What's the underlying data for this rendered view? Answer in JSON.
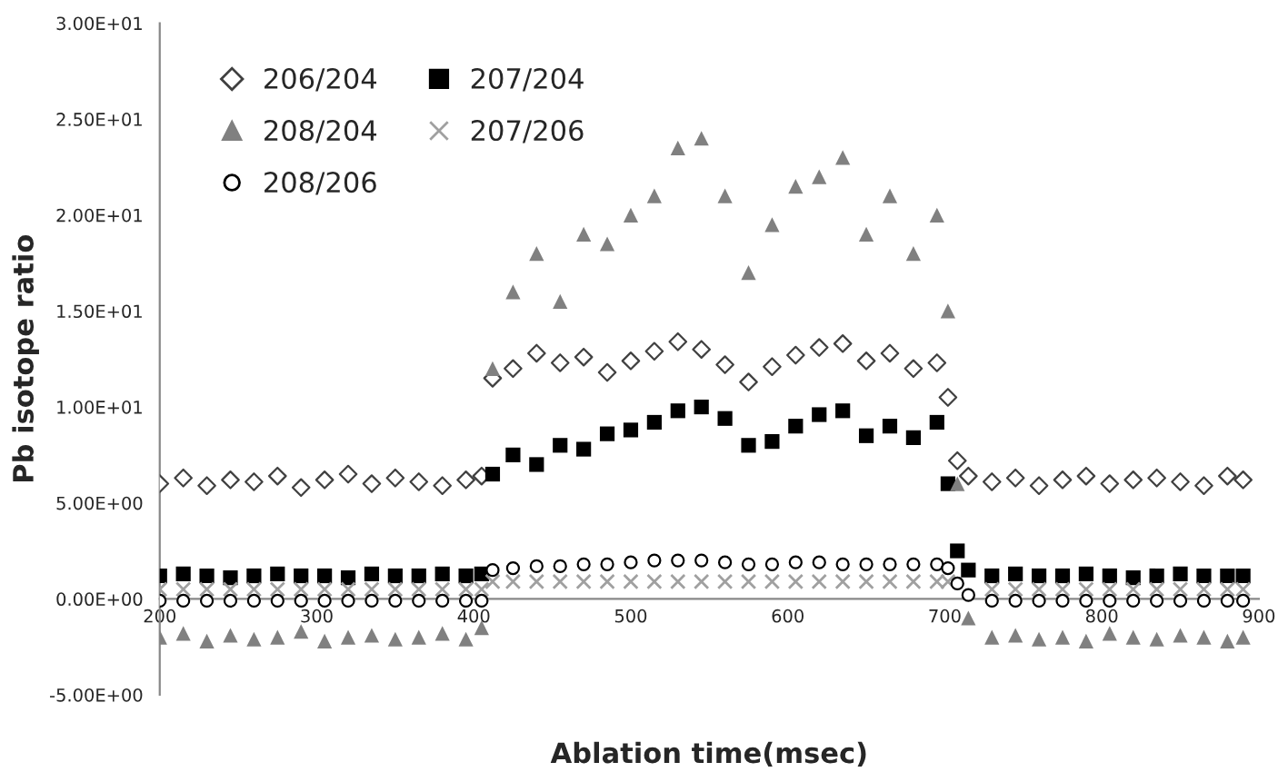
{
  "chart_data": {
    "type": "scatter",
    "xlabel": "Ablation time(msec)",
    "ylabel": "Pb isotope ratio",
    "x": [
      200,
      215,
      230,
      245,
      260,
      275,
      290,
      305,
      320,
      335,
      350,
      365,
      380,
      395,
      405,
      412,
      425,
      440,
      455,
      470,
      485,
      500,
      515,
      530,
      545,
      560,
      575,
      590,
      605,
      620,
      635,
      650,
      665,
      680,
      695,
      702,
      708,
      715,
      730,
      745,
      760,
      775,
      790,
      805,
      820,
      835,
      850,
      865,
      880,
      890
    ],
    "series": [
      {
        "name": "206/204",
        "color": "#404040",
        "marker": "diamond",
        "values": [
          6.0,
          6.3,
          5.9,
          6.2,
          6.1,
          6.4,
          5.8,
          6.2,
          6.5,
          6.0,
          6.3,
          6.1,
          5.9,
          6.2,
          6.4,
          11.5,
          12.0,
          12.8,
          12.3,
          12.6,
          11.8,
          12.4,
          12.9,
          13.4,
          13.0,
          12.2,
          11.3,
          12.1,
          12.7,
          13.1,
          13.3,
          12.4,
          12.8,
          12.0,
          12.3,
          10.5,
          7.2,
          6.4,
          6.1,
          6.3,
          5.9,
          6.2,
          6.4,
          6.0,
          6.2,
          6.3,
          6.1,
          5.9,
          6.4,
          6.2
        ]
      },
      {
        "name": "207/204",
        "color": "#000000",
        "marker": "square",
        "values": [
          1.2,
          1.3,
          1.2,
          1.1,
          1.2,
          1.3,
          1.2,
          1.2,
          1.1,
          1.3,
          1.2,
          1.2,
          1.3,
          1.2,
          1.3,
          6.5,
          7.5,
          7.0,
          8.0,
          7.8,
          8.6,
          8.8,
          9.2,
          9.8,
          10.0,
          9.4,
          8.0,
          8.2,
          9.0,
          9.6,
          9.8,
          8.5,
          9.0,
          8.4,
          9.2,
          6.0,
          2.5,
          1.5,
          1.2,
          1.3,
          1.2,
          1.2,
          1.3,
          1.2,
          1.1,
          1.2,
          1.3,
          1.2,
          1.2,
          1.2
        ]
      },
      {
        "name": "208/204",
        "color": "#808080",
        "marker": "triangle",
        "values": [
          -2.0,
          -1.8,
          -2.2,
          -1.9,
          -2.1,
          -2.0,
          -1.7,
          -2.2,
          -2.0,
          -1.9,
          -2.1,
          -2.0,
          -1.8,
          -2.1,
          -1.5,
          12.0,
          16.0,
          18.0,
          15.5,
          19.0,
          18.5,
          20.0,
          21.0,
          23.5,
          24.0,
          21.0,
          17.0,
          19.5,
          21.5,
          22.0,
          23.0,
          19.0,
          21.0,
          18.0,
          20.0,
          15.0,
          6.0,
          -1.0,
          -2.0,
          -1.9,
          -2.1,
          -2.0,
          -2.2,
          -1.8,
          -2.0,
          -2.1,
          -1.9,
          -2.0,
          -2.2,
          -2.0
        ]
      },
      {
        "name": "207/206",
        "color": "#a0a0a0",
        "marker": "cross",
        "values": [
          0.5,
          0.5,
          0.5,
          0.5,
          0.5,
          0.5,
          0.5,
          0.5,
          0.5,
          0.5,
          0.5,
          0.5,
          0.5,
          0.5,
          0.5,
          0.9,
          0.9,
          0.9,
          0.9,
          0.9,
          0.9,
          0.9,
          0.9,
          0.9,
          0.9,
          0.9,
          0.9,
          0.9,
          0.9,
          0.9,
          0.9,
          0.9,
          0.9,
          0.9,
          0.9,
          0.9,
          null,
          null,
          0.5,
          0.5,
          0.5,
          0.5,
          0.5,
          0.5,
          0.5,
          0.5,
          0.5,
          0.5,
          0.5,
          0.5
        ]
      },
      {
        "name": "208/206",
        "color": "#000000",
        "marker": "circle",
        "values": [
          -0.1,
          -0.1,
          -0.1,
          -0.1,
          -0.1,
          -0.1,
          -0.1,
          -0.1,
          -0.1,
          -0.1,
          -0.1,
          -0.1,
          -0.1,
          -0.1,
          -0.1,
          1.5,
          1.6,
          1.7,
          1.7,
          1.8,
          1.8,
          1.9,
          2.0,
          2.0,
          2.0,
          1.9,
          1.8,
          1.8,
          1.9,
          1.9,
          1.8,
          1.8,
          1.8,
          1.8,
          1.8,
          1.6,
          0.8,
          0.2,
          -0.1,
          -0.1,
          -0.1,
          -0.1,
          -0.1,
          -0.1,
          -0.1,
          -0.1,
          -0.1,
          -0.1,
          -0.1,
          -0.1
        ]
      }
    ],
    "xlim": [
      200,
      900
    ],
    "xticks": [
      200,
      300,
      400,
      500,
      600,
      700,
      800,
      900
    ],
    "ylim": [
      -5,
      30
    ],
    "yticks": [
      {
        "value": -5,
        "label": "-5.00E+00"
      },
      {
        "value": 0,
        "label": "0.00E+00"
      },
      {
        "value": 5,
        "label": "5.00E+00"
      },
      {
        "value": 10,
        "label": "1.00E+01"
      },
      {
        "value": 15,
        "label": "1.50E+01"
      },
      {
        "value": 20,
        "label": "2.00E+01"
      },
      {
        "value": 25,
        "label": "2.50E+01"
      },
      {
        "value": 30,
        "label": "3.00E+01"
      }
    ],
    "grid": false,
    "legend": "top left"
  }
}
